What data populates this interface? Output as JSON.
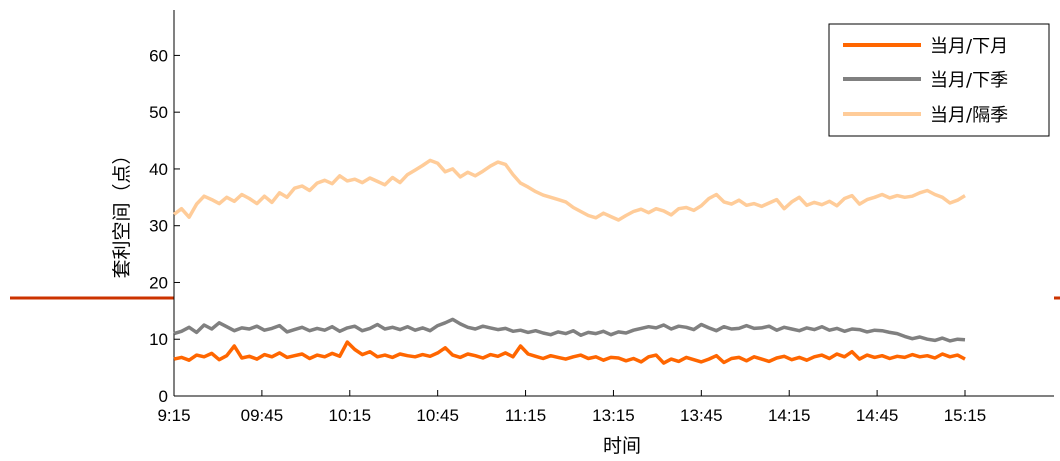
{
  "chart_data": {
    "type": "line",
    "xlabel": "时间",
    "ylabel": "套利空间（点）",
    "ylim": [
      0,
      68
    ],
    "y_ticks": [
      0,
      10,
      20,
      30,
      40,
      50,
      60
    ],
    "x_tick_labels": [
      "9:15",
      "09:45",
      "10:15",
      "10:45",
      "11:15",
      "13:15",
      "13:45",
      "14:15",
      "14:45",
      "15:15"
    ],
    "grid": false,
    "legend_position": "top-right",
    "series": [
      {
        "name": "当月/下月",
        "color": "#FF6600",
        "values": [
          6.5,
          6.8,
          6.3,
          7.2,
          6.9,
          7.5,
          6.4,
          7.1,
          8.8,
          6.7,
          7.0,
          6.5,
          7.3,
          6.9,
          7.6,
          6.8,
          7.1,
          7.4,
          6.6,
          7.2,
          6.9,
          7.5,
          7.0,
          9.5,
          8.2,
          7.3,
          7.8,
          6.9,
          7.2,
          6.8,
          7.4,
          7.1,
          6.9,
          7.3,
          7.0,
          7.6,
          8.5,
          7.2,
          6.8,
          7.4,
          7.1,
          6.7,
          7.3,
          7.0,
          7.6,
          6.9,
          8.8,
          7.4,
          7.0,
          6.6,
          7.1,
          6.8,
          6.5,
          6.9,
          7.2,
          6.6,
          6.9,
          6.3,
          6.8,
          6.7,
          6.2,
          6.6,
          6.0,
          6.9,
          7.2,
          5.8,
          6.5,
          6.1,
          6.8,
          6.4,
          6.0,
          6.5,
          7.1,
          5.9,
          6.6,
          6.8,
          6.2,
          6.9,
          6.5,
          6.1,
          6.7,
          7.0,
          6.4,
          6.8,
          6.3,
          6.9,
          7.2,
          6.6,
          7.4,
          6.9,
          7.8,
          6.5,
          7.2,
          6.8,
          7.1,
          6.6,
          7.0,
          6.8,
          7.3,
          6.9,
          7.1,
          6.7,
          7.4,
          6.9,
          7.2,
          6.5
        ]
      },
      {
        "name": "当月/下季",
        "color": "#808080",
        "values": [
          11.0,
          11.4,
          12.1,
          11.2,
          12.5,
          11.8,
          12.9,
          12.2,
          11.5,
          12.0,
          11.8,
          12.3,
          11.6,
          11.9,
          12.4,
          11.3,
          11.7,
          12.1,
          11.5,
          11.9,
          11.6,
          12.2,
          11.4,
          12.0,
          12.3,
          11.5,
          11.9,
          12.6,
          11.8,
          12.1,
          11.7,
          12.2,
          11.6,
          12.0,
          11.5,
          12.4,
          12.9,
          13.5,
          12.7,
          12.1,
          11.8,
          12.3,
          12.0,
          11.7,
          11.9,
          11.4,
          11.6,
          11.2,
          11.5,
          11.1,
          10.8,
          11.3,
          11.0,
          11.5,
          10.7,
          11.2,
          11.0,
          11.4,
          10.8,
          11.3,
          11.1,
          11.6,
          11.9,
          12.2,
          12.0,
          12.5,
          11.8,
          12.3,
          12.1,
          11.7,
          12.6,
          12.0,
          11.5,
          12.2,
          11.8,
          11.9,
          12.4,
          11.9,
          12.0,
          12.3,
          11.6,
          12.1,
          11.8,
          11.5,
          12.0,
          11.7,
          12.2,
          11.6,
          11.9,
          11.4,
          11.8,
          11.7,
          11.3,
          11.6,
          11.5,
          11.2,
          11.0,
          10.5,
          10.1,
          10.4,
          10.0,
          9.8,
          10.2,
          9.7,
          10.0,
          9.9
        ]
      },
      {
        "name": "当月/隔季",
        "color": "#FFCC99",
        "values": [
          32.0,
          33.0,
          31.5,
          33.8,
          35.2,
          34.6,
          33.9,
          35.0,
          34.3,
          35.5,
          34.8,
          33.9,
          35.2,
          34.1,
          35.8,
          35.0,
          36.6,
          37.0,
          36.2,
          37.5,
          38.0,
          37.4,
          38.8,
          37.9,
          38.2,
          37.6,
          38.4,
          37.8,
          37.2,
          38.5,
          37.6,
          39.0,
          39.8,
          40.6,
          41.5,
          41.0,
          39.5,
          40.0,
          38.6,
          39.4,
          38.8,
          39.6,
          40.5,
          41.2,
          40.8,
          39.0,
          37.5,
          36.8,
          36.0,
          35.4,
          35.0,
          34.6,
          34.2,
          33.2,
          32.5,
          31.8,
          31.4,
          32.2,
          31.6,
          31.0,
          31.8,
          32.5,
          32.9,
          32.3,
          33.0,
          32.6,
          31.9,
          33.0,
          33.2,
          32.7,
          33.5,
          34.8,
          35.5,
          34.2,
          33.8,
          34.5,
          33.6,
          33.9,
          33.4,
          34.0,
          34.6,
          33.0,
          34.2,
          35.0,
          33.6,
          34.1,
          33.7,
          34.3,
          33.5,
          34.8,
          35.3,
          33.8,
          34.6,
          35.0,
          35.5,
          34.9,
          35.3,
          35.0,
          35.2,
          35.8,
          36.2,
          35.5,
          35.0,
          34.0,
          34.5,
          35.3
        ]
      }
    ]
  }
}
